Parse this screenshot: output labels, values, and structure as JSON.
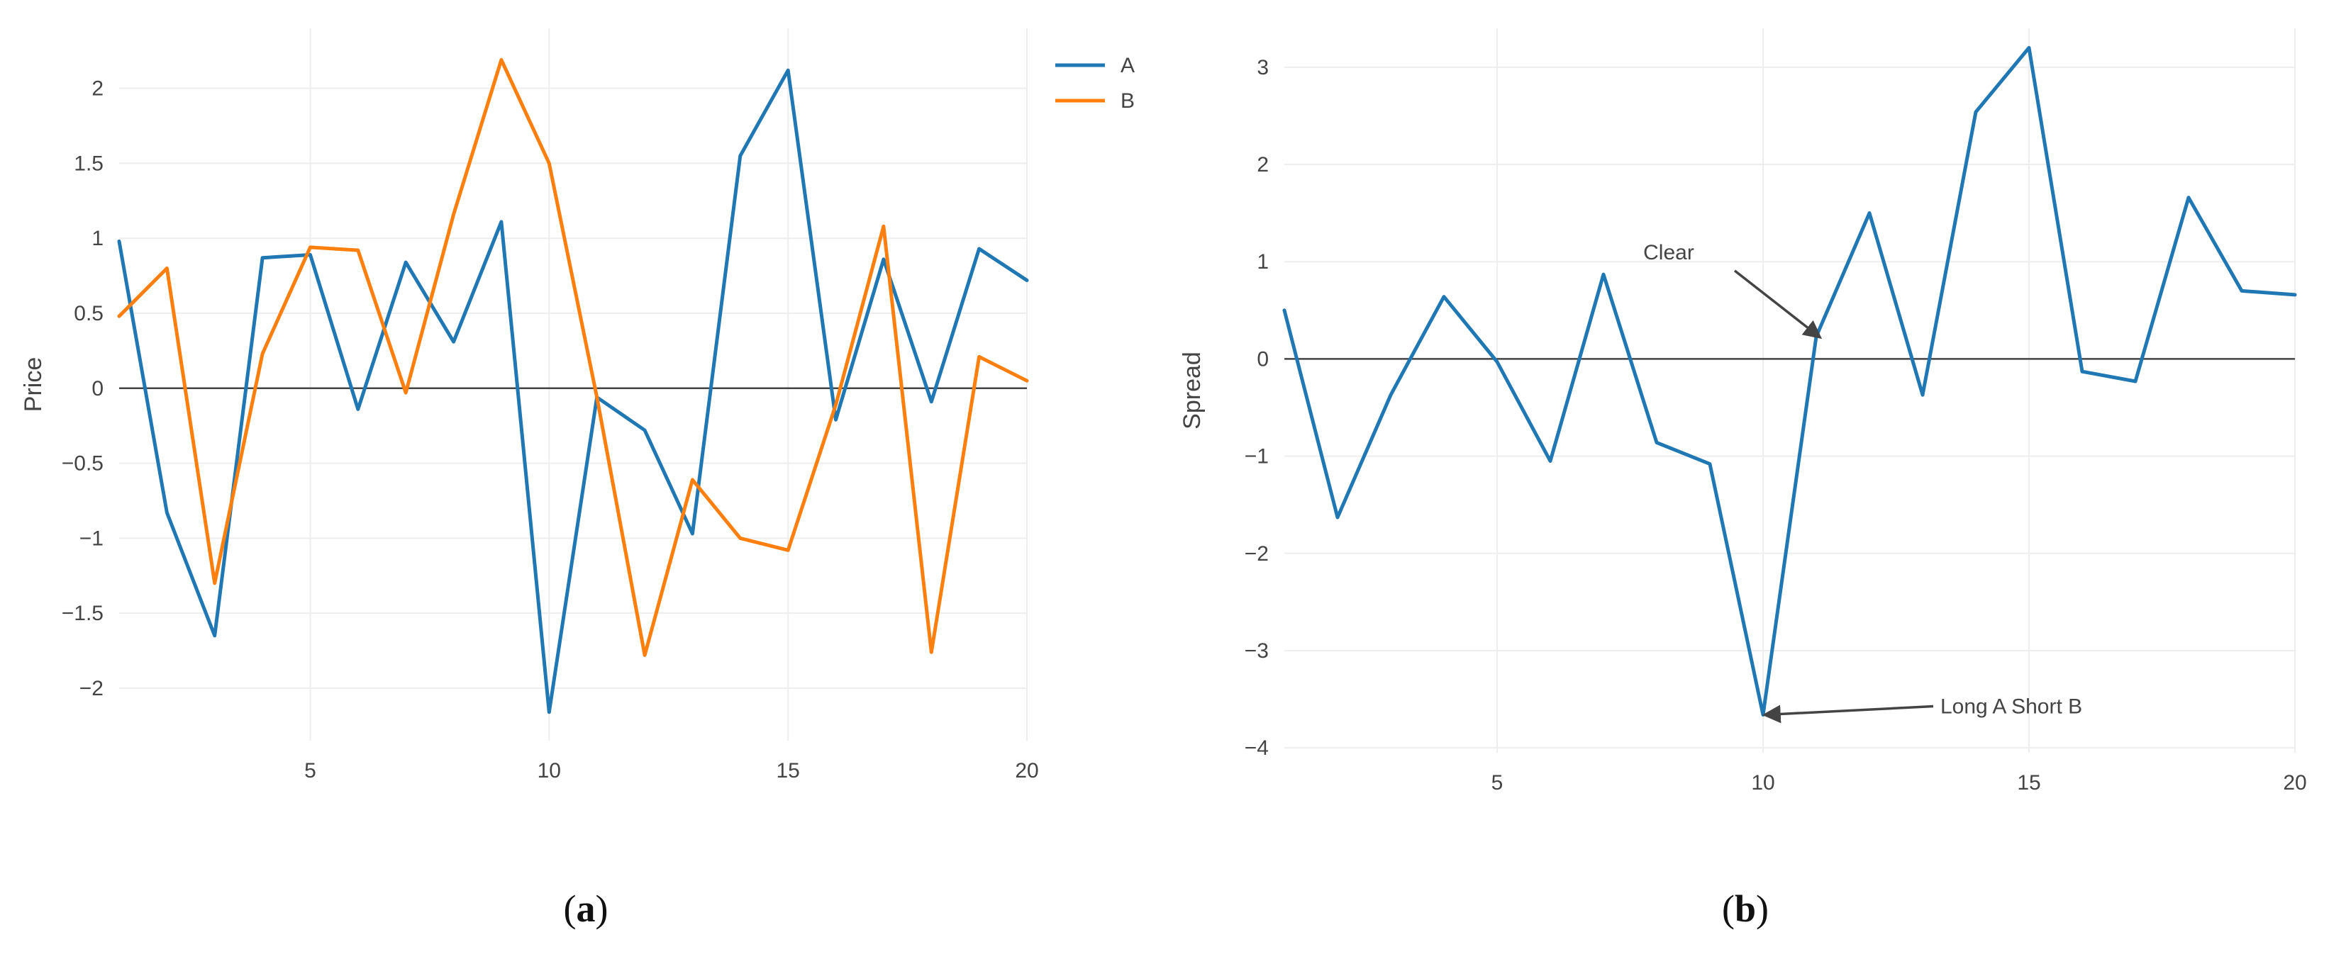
{
  "chart_data": [
    {
      "type": "line",
      "panel_label": "a",
      "x": [
        1,
        2,
        3,
        4,
        5,
        6,
        7,
        8,
        9,
        10,
        11,
        12,
        13,
        14,
        15,
        16,
        17,
        18,
        19,
        20
      ],
      "series": [
        {
          "name": "A",
          "color": "#1f77b4",
          "values": [
            0.98,
            -0.83,
            -1.65,
            0.87,
            0.89,
            -0.14,
            0.84,
            0.31,
            1.11,
            -2.16,
            -0.06,
            -0.28,
            -0.97,
            1.55,
            2.12,
            -0.21,
            0.86,
            -0.09,
            0.93,
            0.72
          ]
        },
        {
          "name": "B",
          "color": "#ff7f0e",
          "values": [
            0.48,
            0.8,
            -1.3,
            0.23,
            0.94,
            0.92,
            -0.03,
            1.16,
            2.19,
            1.5,
            -0.06,
            -1.78,
            -0.61,
            -1.0,
            -1.08,
            -0.11,
            1.08,
            -1.76,
            0.21,
            0.05
          ]
        }
      ],
      "xlabel": "",
      "ylabel": "Price",
      "xlim": [
        1,
        20
      ],
      "ylim": [
        -2.35,
        2.4
      ],
      "xticks": [
        5,
        10,
        15,
        20
      ],
      "yticks": [
        2,
        1.5,
        1,
        0.5,
        0,
        -0.5,
        -1,
        -1.5,
        -2
      ],
      "ytick_labels": [
        "2",
        "1.5",
        "1",
        "0.5",
        "0",
        "−0.5",
        "−1",
        "−1.5",
        "−2"
      ],
      "grid": true,
      "legend": "top-right"
    },
    {
      "type": "line",
      "panel_label": "b",
      "x": [
        1,
        2,
        3,
        4,
        5,
        6,
        7,
        8,
        9,
        10,
        11,
        12,
        13,
        14,
        15,
        16,
        17,
        18,
        19,
        20
      ],
      "series": [
        {
          "color": "#1f77b4",
          "values": [
            0.5,
            -1.63,
            -0.37,
            0.64,
            -0.03,
            -1.05,
            0.87,
            -0.86,
            -1.08,
            -3.66,
            0.23,
            1.5,
            -0.37,
            2.54,
            3.2,
            -0.13,
            -0.23,
            1.66,
            0.7,
            0.66
          ]
        }
      ],
      "xlabel": "",
      "ylabel": "Spread",
      "xlim": [
        1,
        20
      ],
      "ylim": [
        -4.05,
        3.4
      ],
      "xticks": [
        5,
        10,
        15,
        20
      ],
      "yticks": [
        3,
        2,
        1,
        0,
        -1,
        -2,
        -3,
        -4
      ],
      "ytick_labels": [
        "3",
        "2",
        "1",
        "0",
        "−1",
        "−2",
        "−3",
        "−4"
      ],
      "grid": true,
      "annotations": [
        {
          "text": "Clear",
          "x": 11,
          "y": 0.23
        },
        {
          "text": "Long A Short B",
          "x": 10,
          "y": -3.66
        }
      ]
    }
  ]
}
